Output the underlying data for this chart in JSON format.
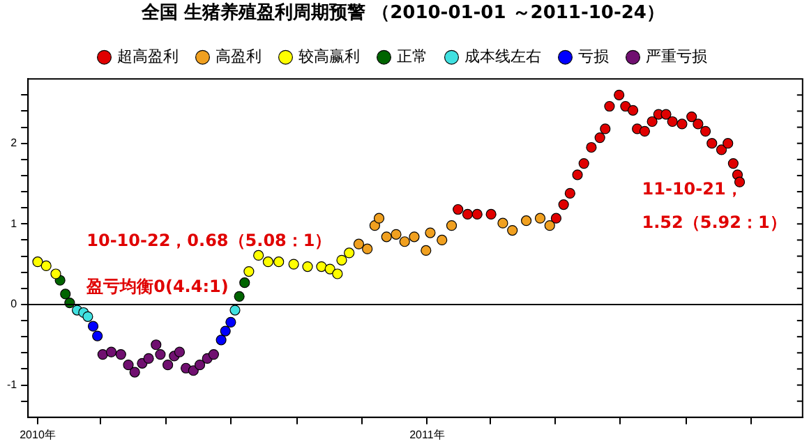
{
  "chart_data": {
    "type": "scatter",
    "title": "全国 生猪养殖盈利周期预警 （2010-01-01 ～2011-10-24）",
    "marker": "circle",
    "legend": "top",
    "grid": false,
    "xlim": [
      "2009-12-23",
      "2011-12-19"
    ],
    "xticks": [
      {
        "value": "2010-01-01",
        "label": "2010年"
      },
      {
        "value": "2010-03-01",
        "label": null
      },
      {
        "value": "2010-05-01",
        "label": null
      },
      {
        "value": "2010-07-01",
        "label": null
      },
      {
        "value": "2010-09-01",
        "label": null
      },
      {
        "value": "2010-11-01",
        "label": null
      },
      {
        "value": "2011-01-01",
        "label": "2011年"
      },
      {
        "value": "2011-03-01",
        "label": null
      },
      {
        "value": "2011-05-01",
        "label": null
      },
      {
        "value": "2011-07-01",
        "label": null
      },
      {
        "value": "2011-09-01",
        "label": null
      },
      {
        "value": "2011-11-01",
        "label": null
      }
    ],
    "ylim": [
      -1.4,
      2.8
    ],
    "yticks": [
      {
        "value": -1.2,
        "label": null
      },
      -1,
      {
        "value": -0.8,
        "label": null
      },
      {
        "value": -0.6,
        "label": null
      },
      {
        "value": -0.4,
        "label": null
      },
      {
        "value": -0.2,
        "label": null
      },
      0,
      {
        "value": 0.2,
        "label": null
      },
      {
        "value": 0.4,
        "label": null
      },
      {
        "value": 0.6,
        "label": null
      },
      {
        "value": 0.8,
        "label": null
      },
      1,
      {
        "value": 1.2,
        "label": null
      },
      {
        "value": 1.4,
        "label": null
      },
      {
        "value": 1.6,
        "label": null
      },
      {
        "value": 1.8,
        "label": null
      },
      2,
      {
        "value": 2.2,
        "label": null
      },
      {
        "value": 2.4,
        "label": null
      },
      {
        "value": 2.6,
        "label": null
      }
    ],
    "series": [
      {
        "name": "超高盈利",
        "color": "#e00000",
        "x": [
          "2011-01-30",
          "2011-02-08",
          "2011-02-17",
          "2011-03-02",
          "2011-05-02",
          "2011-05-09",
          "2011-05-15",
          "2011-05-22",
          "2011-05-28",
          "2011-06-04",
          "2011-06-12",
          "2011-06-17",
          "2011-06-21",
          "2011-06-30",
          "2011-07-06",
          "2011-07-13",
          "2011-07-17",
          "2011-07-24",
          "2011-07-31",
          "2011-08-06",
          "2011-08-13",
          "2011-08-19",
          "2011-08-28",
          "2011-09-06",
          "2011-09-12",
          "2011-09-19",
          "2011-09-25",
          "2011-10-04",
          "2011-10-10",
          "2011-10-15",
          "2011-10-19",
          "2011-10-21"
        ],
        "values": [
          1.18,
          1.12,
          1.12,
          1.12,
          1.07,
          1.24,
          1.38,
          1.61,
          1.75,
          1.95,
          2.07,
          2.18,
          2.46,
          2.6,
          2.46,
          2.41,
          2.18,
          2.15,
          2.27,
          2.36,
          2.36,
          2.27,
          2.24,
          2.33,
          2.24,
          2.15,
          2.0,
          1.92,
          2.0,
          1.75,
          1.61,
          1.52
        ]
      },
      {
        "name": "高盈利",
        "color": "#f0a020",
        "x": [
          "2010-10-29",
          "2010-11-06",
          "2010-11-13",
          "2010-11-17",
          "2010-11-24",
          "2010-12-03",
          "2010-12-11",
          "2010-12-20",
          "2010-12-31",
          "2011-01-04",
          "2011-01-15",
          "2011-01-24",
          "2011-03-13",
          "2011-03-22",
          "2011-04-04",
          "2011-04-17",
          "2011-04-26"
        ],
        "values": [
          0.75,
          0.69,
          0.98,
          1.07,
          0.84,
          0.87,
          0.78,
          0.84,
          0.67,
          0.89,
          0.8,
          0.98,
          1.01,
          0.92,
          1.04,
          1.07,
          0.98
        ]
      },
      {
        "name": "较高赢利",
        "color": "#ffff00",
        "x": [
          "2010-01-01",
          "2010-01-09",
          "2010-01-18",
          "2010-07-18",
          "2010-07-27",
          "2010-08-05",
          "2010-08-15",
          "2010-08-29",
          "2010-09-11",
          "2010-09-24",
          "2010-10-02",
          "2010-10-09",
          "2010-10-13",
          "2010-10-20"
        ],
        "values": [
          0.53,
          0.48,
          0.38,
          0.41,
          0.61,
          0.53,
          0.53,
          0.5,
          0.47,
          0.47,
          0.44,
          0.38,
          0.55,
          0.64
        ]
      },
      {
        "name": "正常",
        "color": "#006400",
        "x": [
          "2010-01-22",
          "2010-01-27",
          "2010-01-31",
          "2010-07-09",
          "2010-07-14"
        ],
        "values": [
          0.3,
          0.13,
          0.02,
          0.1,
          0.27
        ]
      },
      {
        "name": "成本线左右",
        "color": "#40e0e0",
        "x": [
          "2010-02-07",
          "2010-02-13",
          "2010-02-17",
          "2010-07-05"
        ],
        "values": [
          -0.07,
          -0.1,
          -0.15,
          -0.07
        ]
      },
      {
        "name": "亏损",
        "color": "#0000ff",
        "x": [
          "2010-02-22",
          "2010-02-26",
          "2010-06-22",
          "2010-06-26",
          "2010-07-01"
        ],
        "values": [
          -0.27,
          -0.39,
          -0.44,
          -0.33,
          -0.22
        ]
      },
      {
        "name": "严重亏损",
        "color": "#701070",
        "x": [
          "2010-03-03",
          "2010-03-11",
          "2010-03-20",
          "2010-03-27",
          "2010-04-02",
          "2010-04-09",
          "2010-04-15",
          "2010-04-22",
          "2010-04-26",
          "2010-05-03",
          "2010-05-09",
          "2010-05-14",
          "2010-05-20",
          "2010-05-27",
          "2010-06-02",
          "2010-06-09",
          "2010-06-15"
        ],
        "values": [
          -0.62,
          -0.59,
          -0.62,
          -0.75,
          -0.84,
          -0.73,
          -0.67,
          -0.5,
          -0.62,
          -0.75,
          -0.64,
          -0.59,
          -0.79,
          -0.82,
          -0.75,
          -0.67,
          -0.62
        ]
      }
    ],
    "ref_lines": [
      {
        "axis": "y",
        "value": 0,
        "label": "盈亏均衡0(4.4:1)"
      }
    ],
    "annotations": [
      "10-10-22，0.68（5.08：1）",
      {
        "text": "11-10-21，1.52（5.92：1）",
        "x": "2011-10-21",
        "y": 1.52
      }
    ]
  }
}
